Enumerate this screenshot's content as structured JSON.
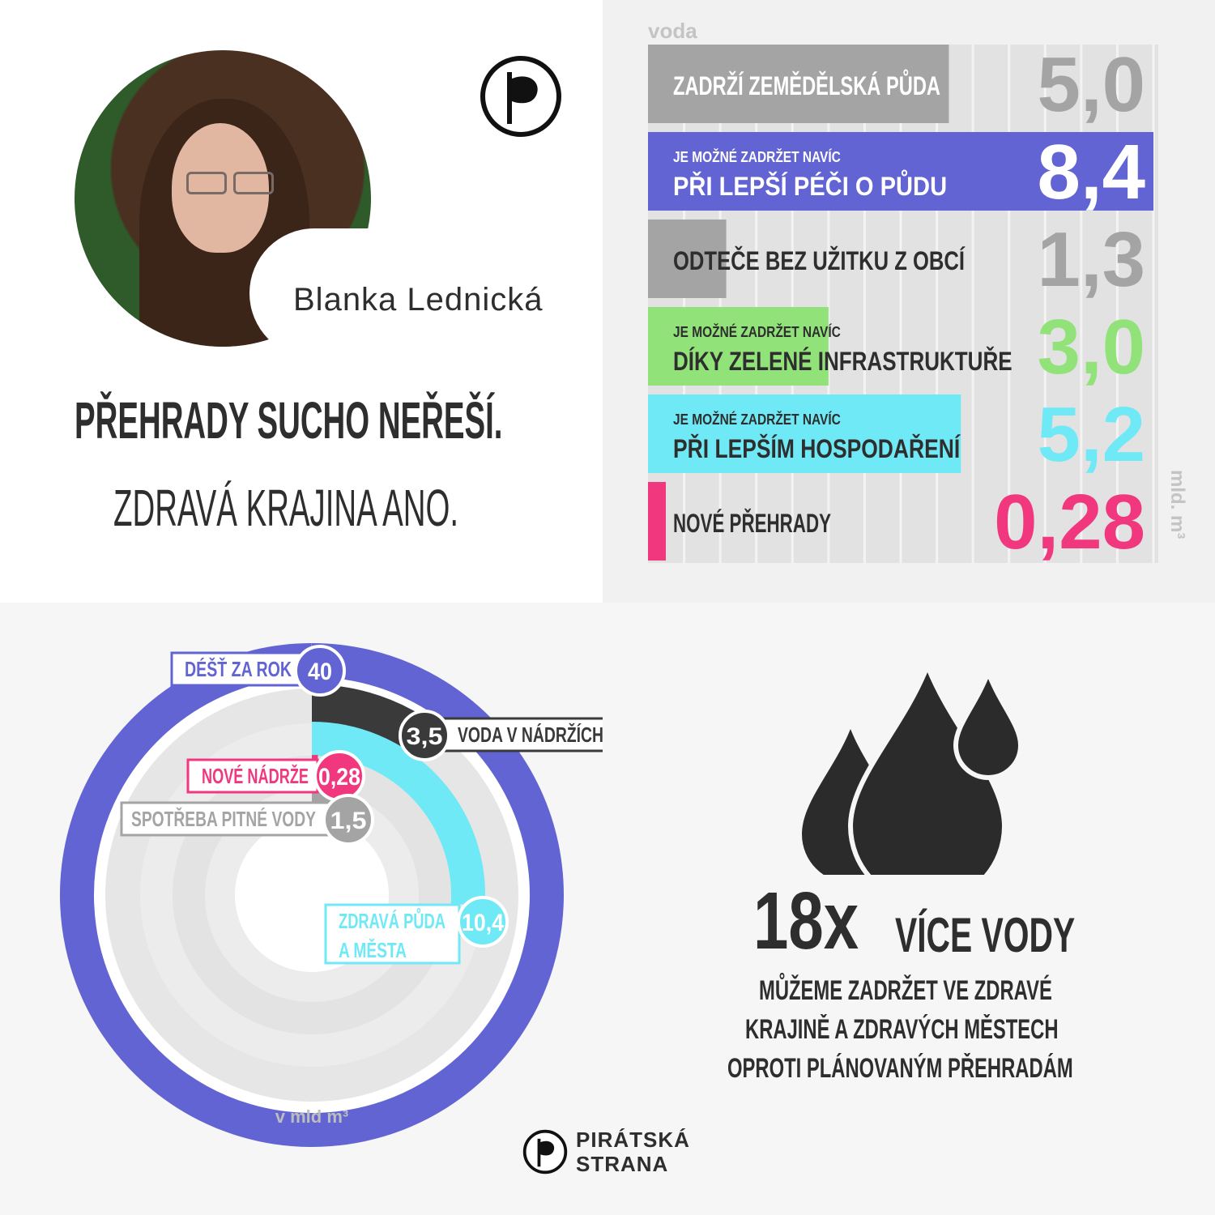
{
  "person": {
    "name": "Blanka Lednická"
  },
  "headline": {
    "line1": "PŘEHRADY SUCHO NEŘEŠÍ.",
    "line2": "ZDRAVÁ KRAJINA ANO."
  },
  "colors": {
    "gray": "#a4a4a4",
    "purple": "#6164d2",
    "green": "#92e27a",
    "cyan": "#6fe9f5",
    "pink": "#f1387f",
    "dark": "#2e2e2e"
  },
  "chart_data": [
    {
      "type": "bar",
      "title": "voda",
      "unit": "mld. m³",
      "categories": [
        {
          "small": "",
          "label": "ZADRŽÍ ZEMĚDĚLSKÁ PŮDA",
          "value": 5.0,
          "display": "5,0",
          "color": "gray"
        },
        {
          "small": "JE MOŽNÉ ZADRŽET NAVÍC",
          "label": "PŘI LEPŠÍ PÉČI O PŮDU",
          "value": 8.4,
          "display": "8,4",
          "color": "purple"
        },
        {
          "small": "",
          "label": "ODTEČE BEZ UŽITKU Z OBCÍ",
          "value": 1.3,
          "display": "1,3",
          "color": "gray"
        },
        {
          "small": "JE MOŽNÉ ZADRŽET NAVÍC",
          "label": "DÍKY ZELENÉ INFRASTRUKTUŘE",
          "value": 3.0,
          "display": "3,0",
          "color": "green"
        },
        {
          "small": "JE MOŽNÉ ZADRŽET NAVÍC",
          "label": "PŘI LEPŠÍM HOSPODAŘENÍ",
          "value": 5.2,
          "display": "5,2",
          "color": "cyan"
        },
        {
          "small": "",
          "label": "NOVÉ PŘEHRADY",
          "value": 0.28,
          "display": "0,28",
          "color": "pink"
        }
      ],
      "xlim": [
        0,
        8.4
      ]
    },
    {
      "type": "radial-bar",
      "unit": "v mld m³",
      "max": 40,
      "series": [
        {
          "name": "DÉŠŤ ZA ROK",
          "value": 40,
          "display": "40",
          "color": "purple"
        },
        {
          "name": "VODA V NÁDRŽÍCH",
          "value": 3.5,
          "display": "3,5",
          "color": "dark"
        },
        {
          "name": "ZDRAVÁ PŮDA A MĚSTA",
          "value": 10.4,
          "display": "10,4",
          "color": "cyan"
        },
        {
          "name": "NOVÉ NÁDRŽE",
          "value": 0.28,
          "display": "0,28",
          "color": "pink"
        },
        {
          "name": "SPOTŘEBA PITNÉ VODY",
          "value": 1.5,
          "display": "1,5",
          "color": "gray"
        }
      ]
    }
  ],
  "claim": {
    "big": "18x",
    "headline": "VÍCE VODY",
    "lines": [
      "MŮŽEME ZADRŽET VE ZDRAVÉ",
      "KRAJINĚ A ZDRAVÝCH MĚSTECH",
      "OPROTI PLÁNOVANÝM PŘEHRADÁM"
    ]
  },
  "brand": {
    "line1": "PIRÁTSKÁ",
    "line2": "STRANA"
  },
  "icons": [
    "pirate-flag-icon",
    "water-drops-icon"
  ]
}
